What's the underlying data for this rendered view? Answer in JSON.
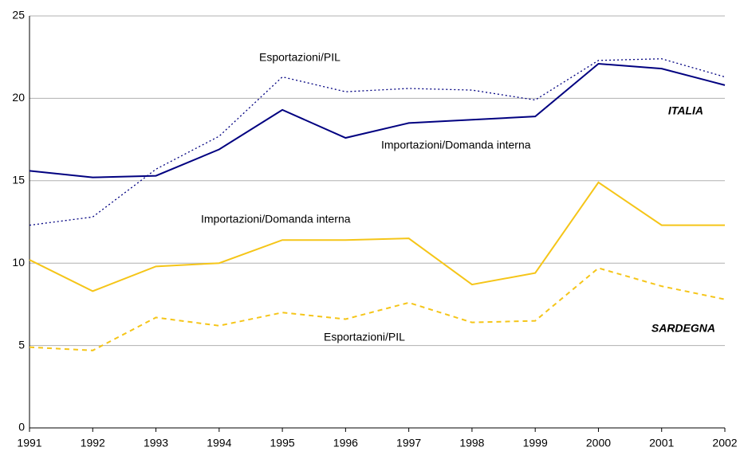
{
  "chart_data": {
    "type": "line",
    "categories": [
      "1991",
      "1992",
      "1993",
      "1994",
      "1995",
      "1996",
      "1997",
      "1998",
      "1999",
      "2000",
      "2001",
      "2002"
    ],
    "series": [
      {
        "name": "Esportazioni/PIL",
        "color": "#000080",
        "style": "dotted",
        "values": [
          12.3,
          12.8,
          15.7,
          17.7,
          21.3,
          20.4,
          20.6,
          20.5,
          19.9,
          22.3,
          22.4,
          21.3
        ]
      },
      {
        "name": "Importazioni/Domanda interna",
        "color": "#000080",
        "style": "solid",
        "values": [
          15.6,
          15.2,
          15.3,
          16.9,
          19.3,
          17.6,
          18.5,
          18.7,
          18.9,
          22.1,
          21.8,
          20.8
        ]
      },
      {
        "name": "Importazioni/Domanda interna",
        "color": "#f5c518",
        "style": "solid",
        "values": [
          10.2,
          8.3,
          9.8,
          10.0,
          11.4,
          11.4,
          11.5,
          8.7,
          9.4,
          14.9,
          12.3,
          12.3
        ]
      },
      {
        "name": "Esportazioni/PIL",
        "color": "#f5c518",
        "style": "dashed",
        "values": [
          4.9,
          4.7,
          6.7,
          6.2,
          7.0,
          6.6,
          7.6,
          6.4,
          6.5,
          9.7,
          8.6,
          7.8
        ]
      }
    ],
    "annotations": [
      "ITALIA",
      "SARDEGNA"
    ],
    "ylim": [
      0,
      25
    ],
    "yticks": [
      0,
      5,
      10,
      15,
      20,
      25
    ],
    "grid": true
  }
}
